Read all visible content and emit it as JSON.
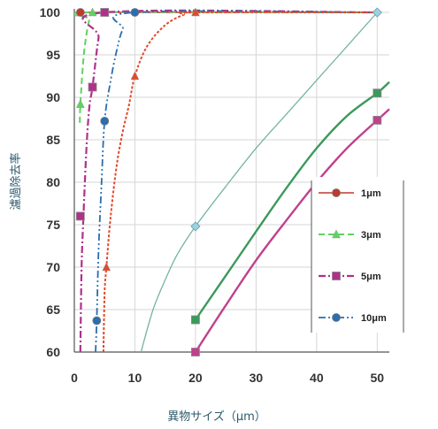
{
  "chart_data": {
    "type": "line",
    "xlabel": "異物サイズ（μm）",
    "ylabel": "濾過除去率",
    "xlim": [
      0,
      52
    ],
    "ylim": [
      60,
      100
    ],
    "x_ticks": [
      0,
      10,
      20,
      30,
      40,
      50
    ],
    "y_ticks": [
      60,
      65,
      70,
      75,
      80,
      85,
      90,
      95,
      100
    ],
    "grid": true,
    "legend_position": "right",
    "series": [
      {
        "name": "1μm",
        "color": "#c0392b",
        "style": "solid-red",
        "marker": "circle",
        "line": [
          [
            0.2,
            100
          ],
          [
            1,
            100
          ],
          [
            2,
            100
          ],
          [
            10,
            100
          ],
          [
            20,
            100
          ],
          [
            50,
            100
          ]
        ],
        "markers": [
          [
            1,
            100
          ]
        ]
      },
      {
        "name": "3μm",
        "color": "#5fd35f",
        "style": "dashed",
        "marker": "triangle",
        "line": [
          [
            0.9,
            87
          ],
          [
            1,
            89.2
          ],
          [
            1.5,
            94.5
          ],
          [
            2,
            97.4
          ],
          [
            2.5,
            99.2
          ],
          [
            3,
            100
          ],
          [
            50,
            100
          ]
        ],
        "markers": [
          [
            1,
            89.2
          ],
          [
            3,
            100
          ]
        ]
      },
      {
        "name": "5μm",
        "color": "#b0308c",
        "style": "dash-dot",
        "marker": "square",
        "line": [
          [
            1,
            60
          ],
          [
            1.2,
            70
          ],
          [
            1.5,
            76
          ],
          [
            2,
            84
          ],
          [
            2.5,
            89
          ],
          [
            3,
            91.2
          ],
          [
            4,
            97
          ],
          [
            5,
            100
          ],
          [
            50,
            100
          ]
        ],
        "markers": [
          [
            1,
            76
          ],
          [
            3,
            91.2
          ],
          [
            5,
            100
          ]
        ]
      },
      {
        "name": "10μm",
        "color": "#2a6db0",
        "style": "dash-dot-dot",
        "marker": "circle",
        "line": [
          [
            3.5,
            60
          ],
          [
            3.7,
            63.7
          ],
          [
            4,
            72
          ],
          [
            4.5,
            80
          ],
          [
            5,
            87.2
          ],
          [
            6,
            92
          ],
          [
            7,
            95.5
          ],
          [
            8,
            98
          ],
          [
            10,
            100
          ],
          [
            50,
            100
          ]
        ],
        "markers": [
          [
            3.7,
            63.7
          ],
          [
            5,
            87.2
          ],
          [
            10,
            100
          ]
        ]
      },
      {
        "name": "",
        "color": "#e04a2a",
        "style": "dotted",
        "marker": "triangle",
        "line": [
          [
            4.8,
            60
          ],
          [
            5,
            67
          ],
          [
            5.3,
            70
          ],
          [
            6,
            76
          ],
          [
            7,
            82
          ],
          [
            8,
            86
          ],
          [
            9,
            89
          ],
          [
            10,
            92.5
          ],
          [
            12,
            96
          ],
          [
            15,
            98.5
          ],
          [
            18,
            99.7
          ],
          [
            20,
            100
          ],
          [
            50,
            100
          ]
        ],
        "markers": [
          [
            5.3,
            70
          ],
          [
            10,
            92.5
          ],
          [
            20,
            100
          ]
        ]
      },
      {
        "name": "",
        "color": "#74b4a4",
        "style": "solid-thin",
        "marker": "diamond",
        "line": [
          [
            11,
            60
          ],
          [
            13,
            65
          ],
          [
            15,
            68.5
          ],
          [
            17,
            71.5
          ],
          [
            20,
            74.8
          ],
          [
            25,
            79.5
          ],
          [
            30,
            84
          ],
          [
            35,
            88
          ],
          [
            40,
            92
          ],
          [
            45,
            96
          ],
          [
            50,
            100
          ]
        ],
        "markers": [
          [
            20,
            74.8
          ],
          [
            50,
            100
          ]
        ]
      },
      {
        "name": "",
        "color": "#3a9a5a",
        "style": "solid-thick",
        "marker": "square",
        "line": [
          [
            20,
            63.8
          ],
          [
            25,
            69
          ],
          [
            30,
            74.2
          ],
          [
            35,
            79.3
          ],
          [
            40,
            84
          ],
          [
            45,
            87.8
          ],
          [
            50,
            90.5
          ],
          [
            52,
            91.8
          ]
        ],
        "markers": [
          [
            20,
            63.8
          ],
          [
            50,
            90.5
          ]
        ]
      },
      {
        "name": "",
        "color": "#c0408c",
        "style": "solid-thick",
        "marker": "square",
        "line": [
          [
            20,
            60
          ],
          [
            25,
            65.5
          ],
          [
            30,
            70.8
          ],
          [
            35,
            75.5
          ],
          [
            40,
            80
          ],
          [
            45,
            84
          ],
          [
            50,
            87.3
          ],
          [
            52,
            88.6
          ]
        ],
        "markers": [
          [
            20,
            60
          ],
          [
            50,
            87.3
          ]
        ]
      }
    ],
    "legend": [
      {
        "label": "1μm",
        "color": "#c0392b",
        "style": "solid-red",
        "marker": "circle"
      },
      {
        "label": "3μm",
        "color": "#5fd35f",
        "style": "dashed",
        "marker": "triangle"
      },
      {
        "label": "5μm",
        "color": "#b0308c",
        "style": "dash-dot",
        "marker": "square"
      },
      {
        "label": "10μm",
        "color": "#2a6db0",
        "style": "dash-dot-dot",
        "marker": "circle"
      }
    ]
  }
}
